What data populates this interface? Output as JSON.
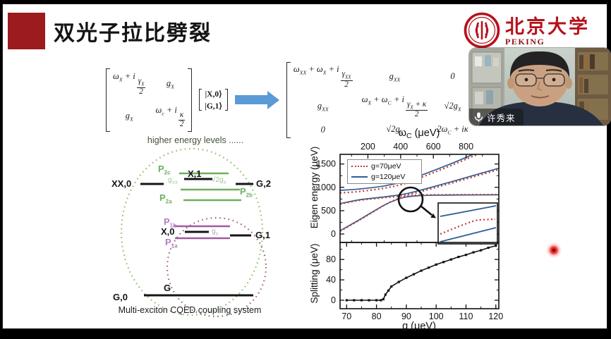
{
  "slide": {
    "title": "双光子拉比劈裂",
    "logo": {
      "cn": "北京大学",
      "en": "PEKING UNIVERSITY"
    },
    "equations": {
      "matrix2": {
        "r1c1": "ω<sub>X</sub> + i<span class='fr'><span>γ<sub>X</sub></span><span>2</span></span>",
        "r1c2": "g<sub>X</sub>",
        "r2c1": "g<sub>X</sub>",
        "r2c2": "ω<sub>c</sub> + i<span class='fr'><span>κ</span><span>2</span></span>"
      },
      "vector": {
        "r1": "|X,0⟩",
        "r2": "|G,1⟩"
      },
      "matrix3": {
        "r1c1": "ω<sub>XX</sub> + ω<sub>X</sub> + i<span class='fr'><span>γ<sub>XX</sub></span><span>2</span></span>",
        "r1c2": "g<sub>XX</sub>",
        "r1c3": "0",
        "r2c1": "g<sub>XX</sub>",
        "r2c2": "ω<sub>X</sub> + ω<sub>C</sub> + i<span class='fr'><span>γ<sub>X</sub> + κ</span><span>2</span></span>",
        "r2c3": "√2g<sub>X</sub>",
        "r3c1": "0",
        "r3c2": "√2g<sub>X</sub>",
        "r3c3": "2ω<sub>C</sub> + iκ"
      }
    },
    "diagram": {
      "header": "higher energy levels ......",
      "caption": "Multi-exciton CQED coupling system",
      "labels": {
        "xx0": "XX,0",
        "x1": "X,1",
        "g2": "G,2",
        "x0": "X,0",
        "g1": "G,1",
        "g0": "G,0",
        "g": "G",
        "p2c": "P<sub>2c</sub>",
        "p2b": "P<sub>2b</sub>",
        "p2a": "P<sub>2a</sub>",
        "p1b": "P<sub>1b</sub>",
        "p1a": "P<sub>1a</sub>",
        "gxx": "g<sub>XX</sub>",
        "sqrt2gx": "√2g<sub>X</sub>",
        "gx": "g<sub>X</sub>"
      }
    }
  },
  "video": {
    "participant_name": "许秀来"
  },
  "chart_data": [
    {
      "type": "line",
      "panel": "top",
      "xlabel": "ωC (μeV)",
      "xlabel_parts": [
        "ω",
        "C",
        " (μeV)"
      ],
      "xlabel_position": "top",
      "ylabel": "Eigen energy (μeV)",
      "xlim": [
        30,
        1000
      ],
      "ylim": [
        -180,
        1707
      ],
      "xticks": [
        200,
        400,
        600,
        800
      ],
      "yticks": [
        0,
        500,
        1000,
        1500
      ],
      "grid": false,
      "legend_position": "upper-left",
      "legend": [
        {
          "label": "g=70μeV",
          "color": "#c23b2e",
          "style": "dotted"
        },
        {
          "label": "g=120μeV",
          "color": "#2e5f96",
          "style": "solid"
        }
      ],
      "series": [
        {
          "name": "g=120μeV lower",
          "color": "#2e5f96",
          "style": "solid",
          "x": [
            30,
            150,
            300,
            380,
            430,
            500,
            600,
            800,
            1000
          ],
          "y": [
            70,
            310,
            620,
            740,
            790,
            818,
            830,
            836,
            840
          ]
        },
        {
          "name": "g=120μeV middle",
          "color": "#2e5f96",
          "style": "solid",
          "x": [
            30,
            150,
            300,
            430,
            550,
            700,
            850,
            1000
          ],
          "y": [
            650,
            735,
            795,
            860,
            965,
            1110,
            1260,
            1410
          ]
        },
        {
          "name": "g=120μeV upper",
          "color": "#2e5f96",
          "style": "solid",
          "x": [
            30,
            150,
            300,
            430,
            550,
            700,
            850,
            1000
          ],
          "y": [
            935,
            965,
            1030,
            1135,
            1290,
            1495,
            1715,
            1930
          ]
        },
        {
          "name": "g=70μeV lower",
          "color": "#c23b2e",
          "style": "dotted",
          "x": [
            30,
            150,
            300,
            380,
            430,
            500,
            600,
            800,
            1000
          ],
          "y": [
            60,
            300,
            615,
            752,
            806,
            833,
            840,
            843,
            845
          ]
        },
        {
          "name": "g=70μeV middle",
          "color": "#c23b2e",
          "style": "dotted",
          "x": [
            30,
            150,
            300,
            430,
            550,
            700,
            850,
            1000
          ],
          "y": [
            640,
            722,
            778,
            830,
            935,
            1080,
            1230,
            1380
          ]
        },
        {
          "name": "g=70μeV upper",
          "color": "#c23b2e",
          "style": "dotted",
          "x": [
            30,
            150,
            300,
            430,
            550,
            700,
            850,
            1000
          ],
          "y": [
            880,
            912,
            982,
            1085,
            1245,
            1455,
            1675,
            1890
          ]
        }
      ],
      "annotations": [
        "magnifier circle around anticrossing near ωC≈430, E≈800",
        "inset box zooming the anticrossing region"
      ]
    },
    {
      "type": "line",
      "panel": "bottom",
      "xlabel": "g (μeV)",
      "ylabel": "Splitting (μeV)",
      "xlim": [
        67.8,
        121
      ],
      "ylim": [
        -9,
        113
      ],
      "xticks": [
        70,
        80,
        90,
        100,
        110,
        120
      ],
      "yticks": [
        0,
        40,
        80
      ],
      "grid": false,
      "marker": "square",
      "color": "#111111",
      "x": [
        70,
        72.5,
        75,
        77.5,
        80,
        81.5,
        82.3,
        83,
        84,
        85,
        87.5,
        90,
        92.5,
        95,
        97.5,
        100,
        102.5,
        105,
        107.5,
        110,
        112.5,
        115,
        117.5,
        120
      ],
      "y": [
        0,
        0,
        0,
        0,
        0,
        0,
        2,
        11,
        19,
        27,
        36,
        44,
        51,
        58,
        64,
        70,
        75,
        80,
        85,
        89,
        94,
        98,
        103,
        107
      ]
    }
  ],
  "colors": {
    "accent_red": "#9b1b1e",
    "pku_red": "#b5121b",
    "chart_blue": "#2e5f96",
    "chart_red": "#c23b2e",
    "diagram_green": "#6cb05c",
    "diagram_purple": "#a05aa0",
    "arrow_blue": "#5b9bd5"
  }
}
